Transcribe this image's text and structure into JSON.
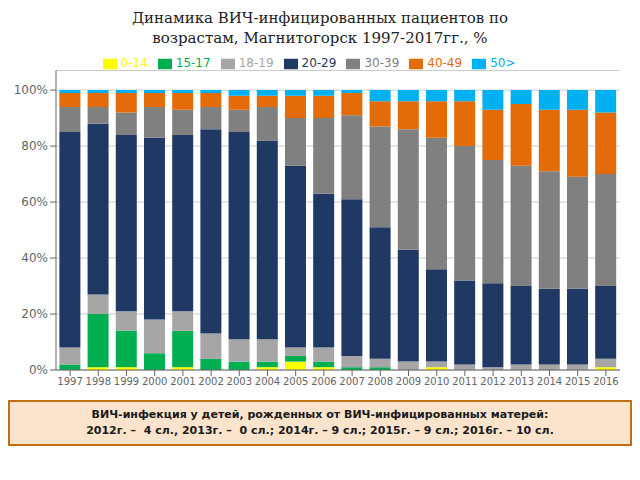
{
  "chart_data": {
    "type": "bar",
    "title": "Динамика ВИЧ-инфицированных пациентов по",
    "subtitle": "возрастам, Магнитогорск 1997-2017гг., %",
    "annotations": [
      "ВИЧ-инфекция у детей, рожденных от ВИЧ-инфицированных матерей:",
      "2012г. –  4 сл., 2013г. –  0 сл.; 2014г. – 9 сл.; 2015г. – 9 сл.; 2016г. – 10 сл."
    ],
    "categories": [
      1997,
      1998,
      1999,
      2000,
      2001,
      2002,
      2003,
      2004,
      2005,
      2006,
      2007,
      2008,
      2009,
      2010,
      2011,
      2012,
      2013,
      2014,
      2015,
      2016
    ],
    "series": [
      {
        "name": "0-14",
        "color": "#ffff00",
        "values": [
          0,
          1,
          1,
          0,
          1,
          0,
          0,
          1,
          3,
          1,
          0,
          0,
          0,
          1,
          0,
          0,
          0,
          0,
          0,
          1
        ]
      },
      {
        "name": "15-17",
        "color": "#00b050",
        "values": [
          2,
          19,
          13,
          6,
          13,
          4,
          3,
          2,
          2,
          2,
          1,
          1,
          0,
          0,
          0,
          0,
          0,
          0,
          0,
          0
        ]
      },
      {
        "name": "18-19",
        "color": "#a6a6a6",
        "values": [
          6,
          7,
          7,
          12,
          7,
          9,
          8,
          8,
          3,
          5,
          4,
          3,
          3,
          2,
          2,
          1,
          2,
          2,
          2,
          3
        ]
      },
      {
        "name": "20-29",
        "color": "#1f3864",
        "values": [
          77,
          61,
          63,
          65,
          63,
          73,
          74,
          71,
          65,
          55,
          56,
          47,
          40,
          33,
          30,
          30,
          28,
          27,
          27,
          26
        ]
      },
      {
        "name": "30-39",
        "color": "#808080",
        "values": [
          9,
          6,
          8,
          11,
          9,
          8,
          8,
          12,
          17,
          27,
          30,
          36,
          43,
          47,
          48,
          44,
          43,
          42,
          40,
          40
        ]
      },
      {
        "name": "40-49",
        "color": "#e36c09",
        "values": [
          5,
          5,
          7,
          5,
          6,
          5,
          5,
          4,
          8,
          8,
          8,
          9,
          10,
          13,
          16,
          18,
          22,
          22,
          24,
          22
        ]
      },
      {
        "name": "50>",
        "color": "#00b0f0",
        "values": [
          1,
          1,
          1,
          1,
          1,
          1,
          2,
          2,
          2,
          2,
          1,
          4,
          4,
          4,
          4,
          7,
          5,
          7,
          7,
          8
        ]
      }
    ],
    "stacked": true,
    "ylim": [
      0,
      107
    ],
    "yticks": [
      {
        "value": 0,
        "label": "0%"
      },
      {
        "value": 20,
        "label": "20%"
      },
      {
        "value": 40,
        "label": "40%"
      },
      {
        "value": 60,
        "label": "60%"
      },
      {
        "value": 80,
        "label": "80%"
      },
      {
        "value": 100,
        "label": "100%"
      }
    ],
    "grid": true,
    "legend": "top"
  }
}
